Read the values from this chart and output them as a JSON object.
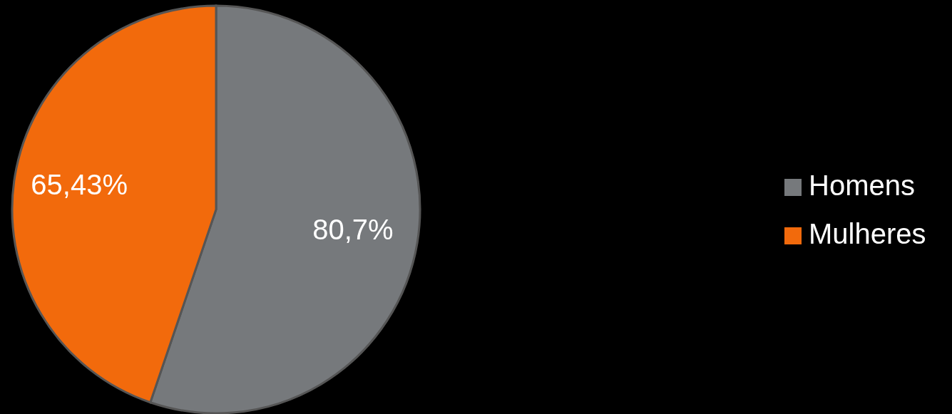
{
  "chart_data": {
    "type": "pie",
    "categories": [
      "Homens",
      "Mulheres"
    ],
    "values": [
      80.7,
      65.43
    ],
    "colors": [
      "#76797c",
      "#f26a0c"
    ],
    "value_labels": [
      "80,7%",
      "65,43%"
    ],
    "legend": "right"
  }
}
